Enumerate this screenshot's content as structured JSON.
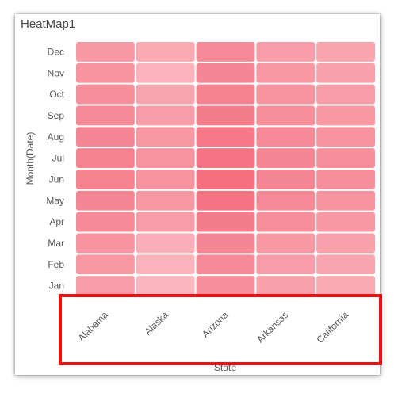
{
  "title": "HeatMap1",
  "chart_data": {
    "type": "heatmap",
    "title": "HeatMap1",
    "xlabel": "State",
    "ylabel": "Month(Date)",
    "x": [
      "Alabama",
      "Alaska",
      "Arizona",
      "Arkansas",
      "California"
    ],
    "y": [
      "Dec",
      "Nov",
      "Oct",
      "Sep",
      "Aug",
      "Jul",
      "Jun",
      "May",
      "Apr",
      "Mar",
      "Feb",
      "Jan"
    ],
    "values": [
      [
        0.55,
        0.35,
        0.7,
        0.5,
        0.4
      ],
      [
        0.6,
        0.25,
        0.75,
        0.55,
        0.45
      ],
      [
        0.65,
        0.4,
        0.8,
        0.6,
        0.5
      ],
      [
        0.7,
        0.5,
        0.85,
        0.65,
        0.55
      ],
      [
        0.75,
        0.55,
        0.9,
        0.7,
        0.6
      ],
      [
        0.8,
        0.6,
        0.95,
        0.75,
        0.65
      ],
      [
        0.8,
        0.6,
        1.0,
        0.75,
        0.65
      ],
      [
        0.75,
        0.55,
        0.95,
        0.7,
        0.6
      ],
      [
        0.7,
        0.5,
        0.85,
        0.65,
        0.55
      ],
      [
        0.6,
        0.3,
        0.75,
        0.55,
        0.45
      ],
      [
        0.55,
        0.25,
        0.7,
        0.5,
        0.4
      ],
      [
        0.5,
        0.2,
        0.65,
        0.45,
        0.35
      ]
    ],
    "color_low": "#fcc9cf",
    "color_high": "#f4707f",
    "grid": false,
    "legend": "none"
  }
}
